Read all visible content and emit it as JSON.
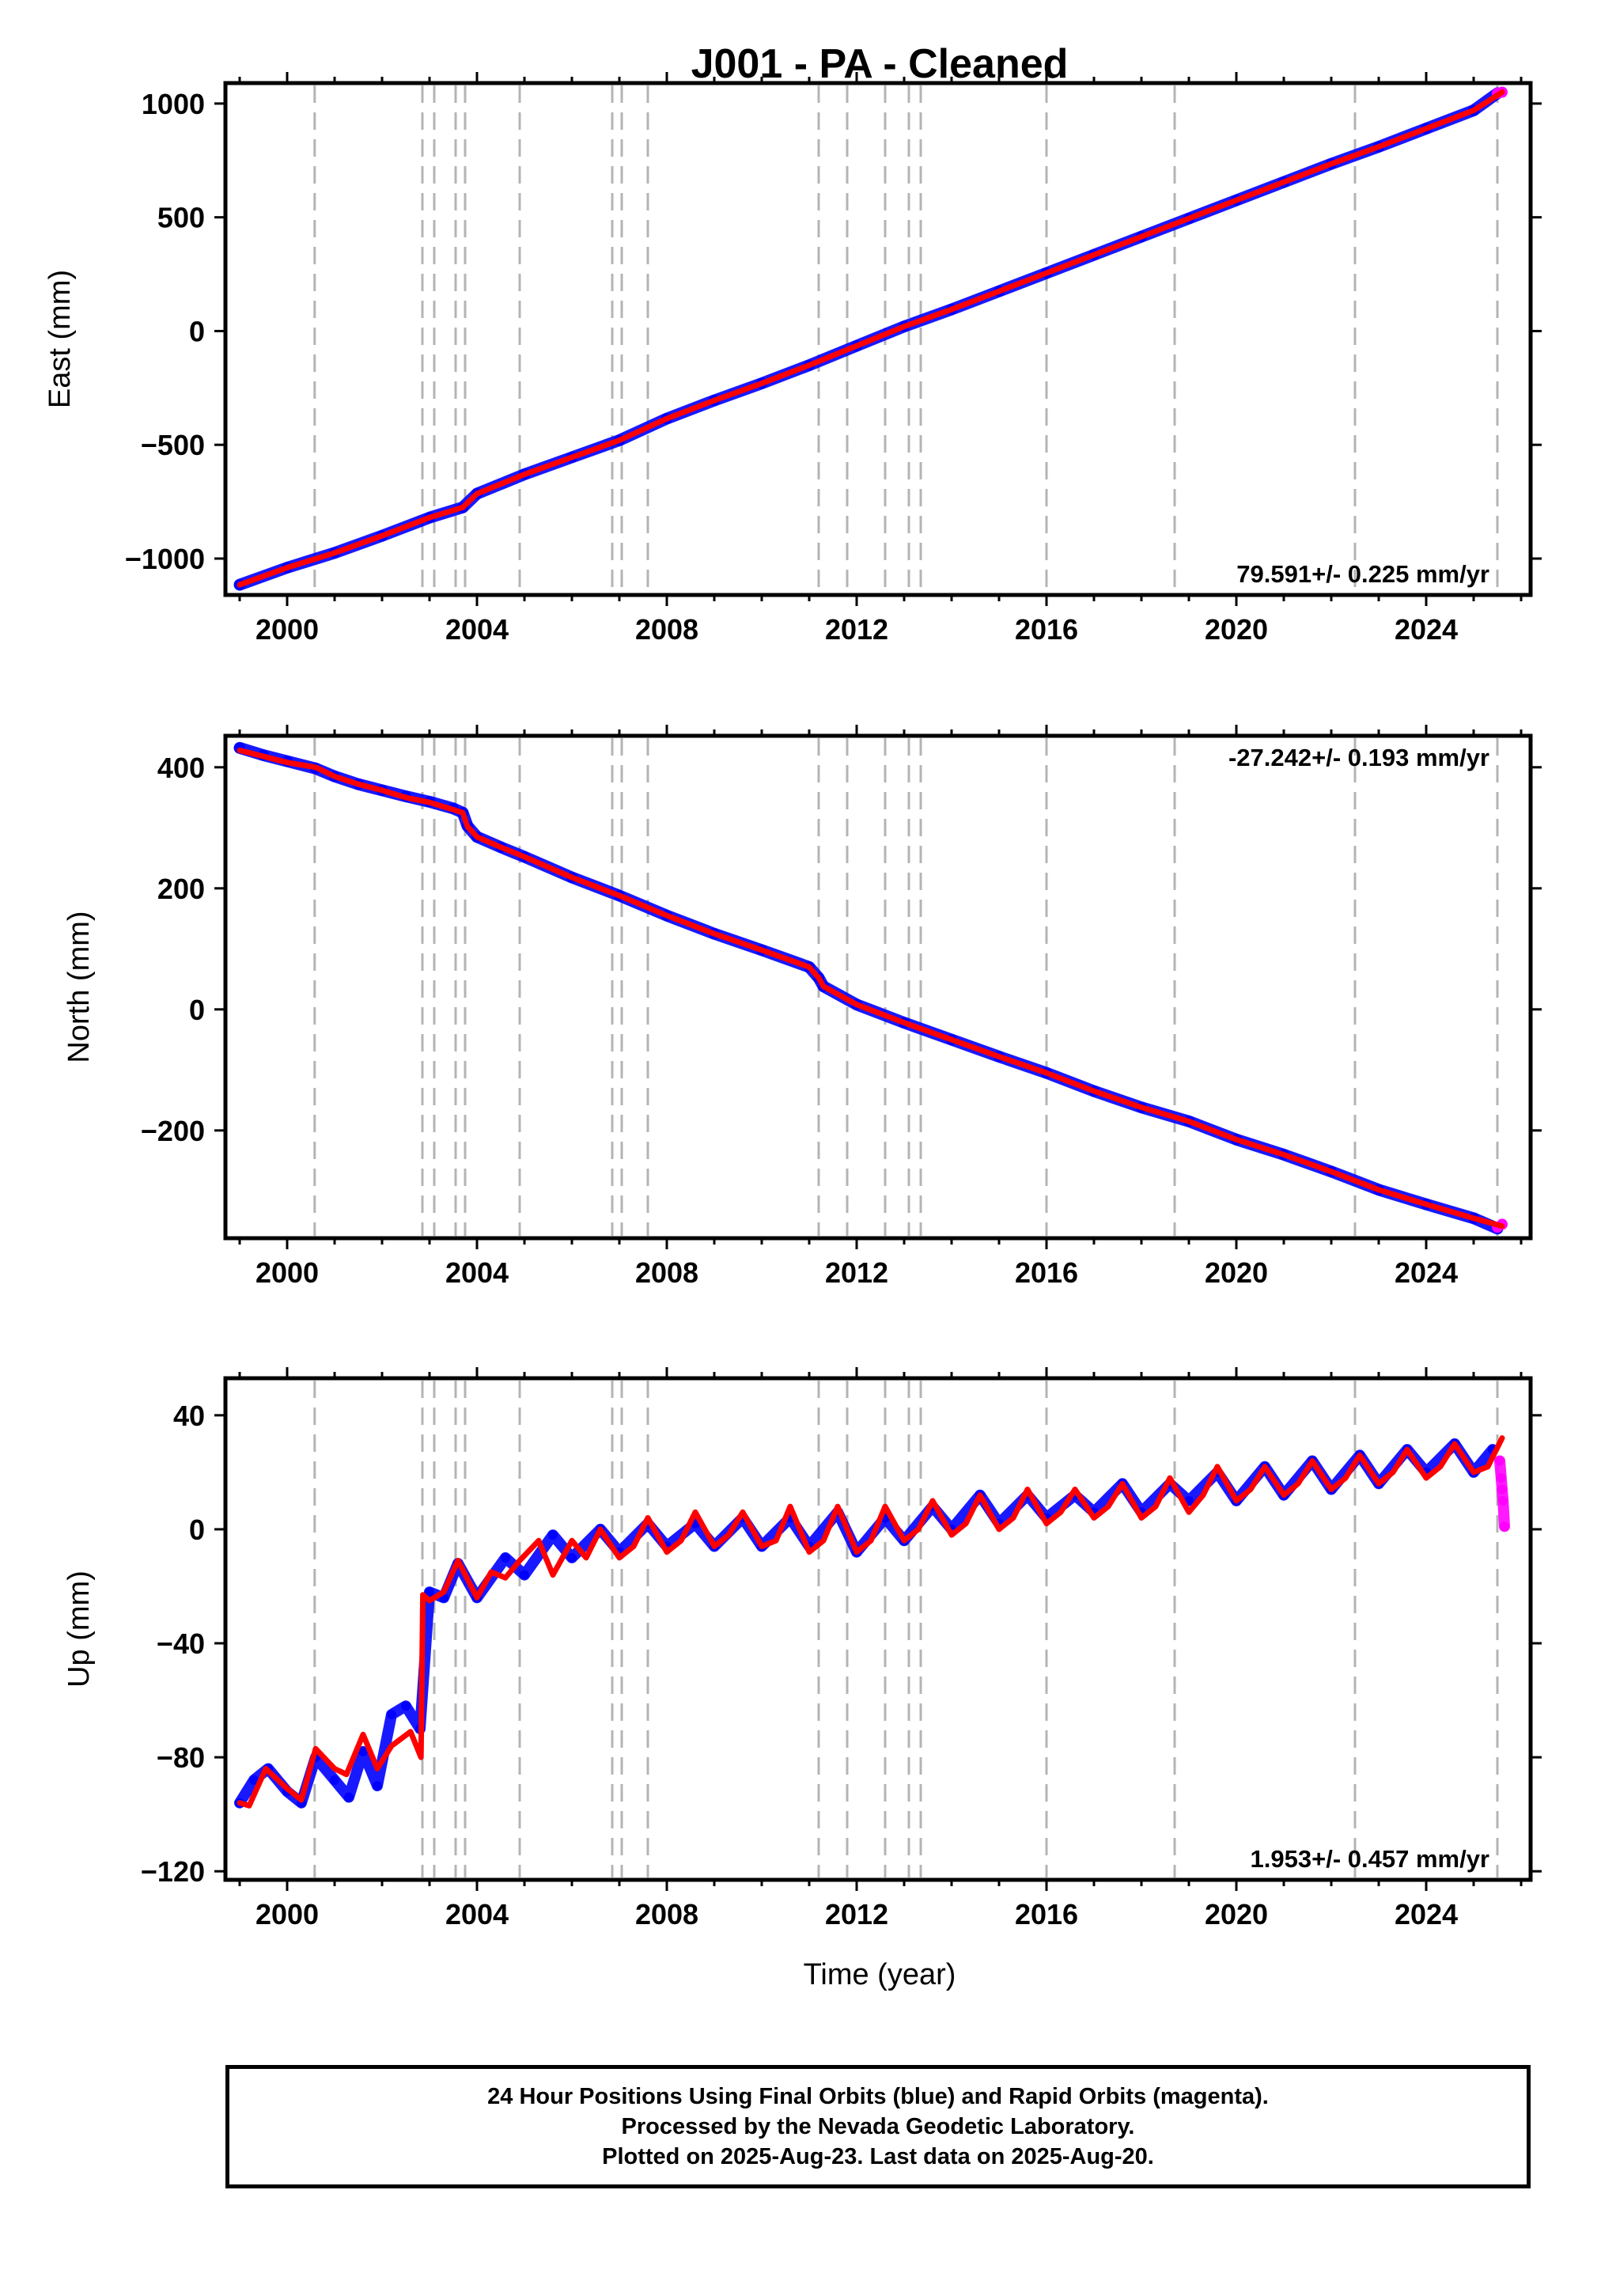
{
  "chart_data": {
    "title": "J001  - PA - Cleaned",
    "xlabel": "Time (year)",
    "xlim": [
      1998.7,
      2026.2
    ],
    "x_ticks": [
      2000,
      2004,
      2008,
      2012,
      2016,
      2020,
      2024
    ],
    "x_tick_labels": [
      "2000",
      "2004",
      "2008",
      "2012",
      "2016",
      "2020",
      "2024"
    ],
    "x_minor_ticks": [
      1999,
      2001,
      2002,
      2003,
      2005,
      2006,
      2007,
      2009,
      2010,
      2011,
      2013,
      2014,
      2015,
      2017,
      2018,
      2019,
      2021,
      2022,
      2023,
      2025,
      2026
    ],
    "event_lines_years": [
      2000.58,
      2002.85,
      2003.1,
      2003.55,
      2003.75,
      2004.9,
      2006.85,
      2007.05,
      2007.6,
      2011.2,
      2011.8,
      2012.6,
      2013.1,
      2013.35,
      2016.0,
      2018.7,
      2022.5,
      2025.5
    ],
    "colors": {
      "final": "#0000ff",
      "rapid": "#ff00ff",
      "model": "#ff0000",
      "event_line": "#b4b4b4"
    },
    "panels": [
      {
        "id": "east",
        "type": "scatter",
        "ylabel": "East (mm)",
        "ylim": [
          -1160,
          1090
        ],
        "y_ticks": [
          -1000,
          -500,
          0,
          500,
          1000
        ],
        "y_tick_labels": [
          "−1000",
          "−500",
          "0",
          "500",
          "1000"
        ],
        "rate_label": "79.591+/- 0.225 mm/yr",
        "rate_position": "bottom-right",
        "series": [
          {
            "name": "Final Orbits",
            "style": "points",
            "color": "#0000ff",
            "x": [
              1999.0,
              2000.0,
              2001.0,
              2002.0,
              2003.0,
              2003.7,
              2004.0,
              2005.0,
              2006.0,
              2007.0,
              2008.0,
              2009.0,
              2010.0,
              2011.0,
              2012.0,
              2013.0,
              2014.0,
              2015.0,
              2016.0,
              2017.0,
              2018.0,
              2019.0,
              2020.0,
              2021.0,
              2022.0,
              2023.0,
              2024.0,
              2025.0,
              2025.5
            ],
            "y": [
              -1115,
              -1040,
              -975,
              -900,
              -820,
              -775,
              -715,
              -630,
              -555,
              -480,
              -385,
              -305,
              -230,
              -150,
              -65,
              20,
              95,
              175,
              255,
              335,
              415,
              495,
              575,
              655,
              735,
              810,
              890,
              970,
              1045
            ]
          },
          {
            "name": "Rapid Orbits",
            "style": "points",
            "color": "#ff00ff",
            "x": [
              2025.5,
              2025.6
            ],
            "y": [
              1045,
              1050
            ]
          },
          {
            "name": "Model",
            "style": "line",
            "color": "#ff0000",
            "x": [
              1999.0,
              2000.0,
              2001.0,
              2002.0,
              2003.0,
              2003.7,
              2004.0,
              2005.0,
              2006.0,
              2007.0,
              2008.0,
              2009.0,
              2010.0,
              2011.0,
              2012.0,
              2013.0,
              2014.0,
              2015.0,
              2016.0,
              2017.0,
              2018.0,
              2019.0,
              2020.0,
              2021.0,
              2022.0,
              2023.0,
              2024.0,
              2025.0,
              2025.6
            ],
            "y": [
              -1115,
              -1040,
              -975,
              -900,
              -820,
              -775,
              -715,
              -630,
              -555,
              -480,
              -385,
              -305,
              -230,
              -150,
              -65,
              20,
              95,
              175,
              255,
              335,
              415,
              495,
              575,
              655,
              735,
              810,
              890,
              970,
              1050
            ]
          }
        ]
      },
      {
        "id": "north",
        "type": "scatter",
        "ylabel": "North (mm)",
        "ylim": [
          -378,
          452
        ],
        "y_ticks": [
          -200,
          0,
          200,
          400
        ],
        "y_tick_labels": [
          "−200",
          "0",
          "200",
          "400"
        ],
        "rate_label": "-27.242+/- 0.193 mm/yr",
        "rate_position": "top-right",
        "series": [
          {
            "name": "Final Orbits",
            "style": "points",
            "color": "#0000ff",
            "x": [
              1999.0,
              1999.5,
              2000.0,
              2000.6,
              2001.0,
              2001.5,
              2002.0,
              2002.5,
              2003.0,
              2003.5,
              2003.7,
              2003.8,
              2004.0,
              2004.5,
              2005.0,
              2006.0,
              2007.0,
              2008.0,
              2009.0,
              2010.0,
              2011.0,
              2011.2,
              2011.3,
              2012.0,
              2013.0,
              2014.0,
              2015.0,
              2016.0,
              2017.0,
              2018.0,
              2019.0,
              2020.0,
              2021.0,
              2022.0,
              2023.0,
              2024.0,
              2025.0,
              2025.5
            ],
            "y": [
              432,
              420,
              410,
              398,
              385,
              372,
              362,
              352,
              343,
              332,
              325,
              303,
              285,
              268,
              252,
              218,
              188,
              155,
              125,
              98,
              70,
              52,
              38,
              8,
              -22,
              -50,
              -78,
              -105,
              -135,
              -162,
              -185,
              -215,
              -240,
              -268,
              -298,
              -322,
              -345,
              -362
            ]
          },
          {
            "name": "Rapid Orbits",
            "style": "points",
            "color": "#ff00ff",
            "x": [
              2025.5,
              2025.6
            ],
            "y": [
              -360,
              -355
            ]
          },
          {
            "name": "Model",
            "style": "line",
            "color": "#ff0000",
            "x": [
              1999.0,
              1999.5,
              2000.0,
              2000.6,
              2001.0,
              2001.5,
              2002.0,
              2002.5,
              2003.0,
              2003.5,
              2003.7,
              2003.8,
              2004.0,
              2004.5,
              2005.0,
              2006.0,
              2007.0,
              2008.0,
              2009.0,
              2010.0,
              2011.0,
              2011.2,
              2011.3,
              2012.0,
              2013.0,
              2014.0,
              2015.0,
              2016.0,
              2017.0,
              2018.0,
              2019.0,
              2020.0,
              2021.0,
              2022.0,
              2023.0,
              2024.0,
              2025.0,
              2025.6
            ],
            "y": [
              428,
              418,
              408,
              400,
              385,
              372,
              362,
              350,
              342,
              330,
              325,
              302,
              285,
              268,
              252,
              218,
              188,
              155,
              125,
              98,
              70,
              52,
              38,
              8,
              -22,
              -50,
              -78,
              -105,
              -135,
              -162,
              -185,
              -215,
              -240,
              -268,
              -298,
              -322,
              -345,
              -358
            ]
          }
        ]
      },
      {
        "id": "up",
        "type": "scatter",
        "ylabel": "Up (mm)",
        "ylim": [
          -123,
          53
        ],
        "y_ticks": [
          -120,
          -80,
          -40,
          0,
          40
        ],
        "y_tick_labels": [
          "−120",
          "−80",
          "−40",
          "0",
          "40"
        ],
        "rate_label": "1.953+/- 0.457 mm/yr",
        "rate_position": "bottom-right",
        "series": [
          {
            "name": "Final Orbits",
            "style": "points",
            "color": "#0000ff",
            "x": [
              1999.0,
              1999.3,
              1999.6,
              2000.0,
              2000.3,
              2000.6,
              2001.0,
              2001.3,
              2001.6,
              2001.9,
              2002.2,
              2002.5,
              2002.8,
              2003.0,
              2003.3,
              2003.6,
              2004.0,
              2004.6,
              2005.0,
              2005.6,
              2006.0,
              2006.6,
              2007.0,
              2007.6,
              2008.0,
              2008.6,
              2009.0,
              2009.6,
              2010.0,
              2010.6,
              2011.0,
              2011.6,
              2012.0,
              2012.6,
              2013.0,
              2013.6,
              2014.0,
              2014.6,
              2015.0,
              2015.6,
              2016.0,
              2016.6,
              2017.0,
              2017.6,
              2018.0,
              2018.6,
              2019.0,
              2019.6,
              2020.0,
              2020.6,
              2021.0,
              2021.6,
              2022.0,
              2022.6,
              2023.0,
              2023.6,
              2024.0,
              2024.6,
              2025.0,
              2025.4
            ],
            "y": [
              -96,
              -88,
              -84,
              -92,
              -96,
              -80,
              -88,
              -94,
              -78,
              -90,
              -65,
              -62,
              -70,
              -22,
              -24,
              -12,
              -24,
              -10,
              -16,
              -2,
              -10,
              0,
              -8,
              2,
              -6,
              2,
              -6,
              4,
              -6,
              4,
              -6,
              6,
              -8,
              4,
              -4,
              8,
              0,
              12,
              2,
              12,
              4,
              12,
              6,
              16,
              6,
              16,
              10,
              20,
              10,
              22,
              12,
              24,
              14,
              26,
              16,
              28,
              20,
              30,
              20,
              28
            ]
          },
          {
            "name": "Rapid Orbits",
            "style": "points",
            "color": "#ff00ff",
            "x": [
              2025.55,
              2025.58,
              2025.6,
              2025.62,
              2025.65
            ],
            "y": [
              24,
              18,
              14,
              10,
              1
            ]
          },
          {
            "name": "Model",
            "style": "line",
            "color": "#ff0000",
            "x": [
              1999.0,
              1999.2,
              1999.55,
              2000.0,
              2000.3,
              2000.6,
              2001.0,
              2001.25,
              2001.6,
              2001.9,
              2002.2,
              2002.6,
              2002.82,
              2002.86,
              2003.0,
              2003.3,
              2003.6,
              2004.0,
              2004.3,
              2004.6,
              2004.9,
              2005.3,
              2005.6,
              2006.0,
              2006.3,
              2006.6,
              2007.0,
              2007.3,
              2007.6,
              2008.0,
              2008.3,
              2008.6,
              2009.0,
              2009.3,
              2009.6,
              2010.0,
              2010.3,
              2010.6,
              2011.0,
              2011.3,
              2011.6,
              2012.0,
              2012.3,
              2012.6,
              2013.0,
              2013.3,
              2013.6,
              2014.0,
              2014.3,
              2014.6,
              2015.0,
              2015.3,
              2015.6,
              2016.0,
              2016.3,
              2016.6,
              2017.0,
              2017.3,
              2017.6,
              2018.0,
              2018.3,
              2018.6,
              2019.0,
              2019.3,
              2019.6,
              2020.0,
              2020.3,
              2020.6,
              2021.0,
              2021.3,
              2021.6,
              2022.0,
              2022.3,
              2022.6,
              2023.0,
              2023.3,
              2023.6,
              2024.0,
              2024.3,
              2024.6,
              2025.0,
              2025.3,
              2025.6
            ],
            "y": [
              -96,
              -97,
              -84,
              -91,
              -95,
              -77,
              -84,
              -86,
              -72,
              -84,
              -76,
              -71,
              -80,
              -23,
              -25,
              -22,
              -11,
              -24,
              -15,
              -17,
              -11,
              -4,
              -16,
              -4,
              -10,
              0,
              -10,
              -6,
              4,
              -8,
              -4,
              6,
              -6,
              -2,
              6,
              -6,
              -4,
              8,
              -8,
              -4,
              8,
              -8,
              -4,
              8,
              -4,
              0,
              10,
              -2,
              2,
              12,
              0,
              4,
              14,
              2,
              6,
              14,
              4,
              8,
              16,
              4,
              8,
              18,
              6,
              12,
              22,
              10,
              14,
              22,
              12,
              16,
              24,
              14,
              18,
              26,
              16,
              20,
              28,
              18,
              22,
              30,
              20,
              22,
              32
            ]
          }
        ]
      }
    ]
  },
  "footer": {
    "line1": "24 Hour Positions Using Final Orbits (blue) and Rapid Orbits (magenta).",
    "line2": "Processed by the Nevada Geodetic Laboratory.",
    "line3": "Plotted on 2025-Aug-23. Last data on 2025-Aug-20."
  }
}
